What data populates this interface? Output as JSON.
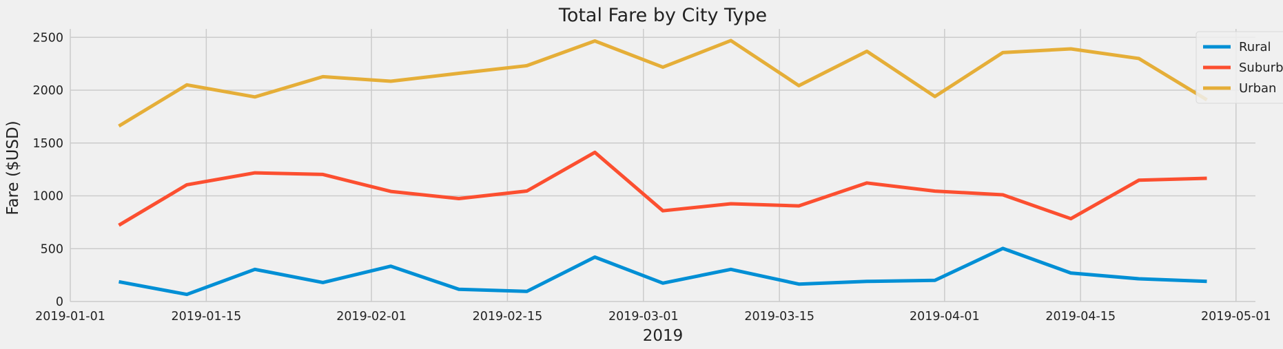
{
  "chart_data": {
    "type": "line",
    "title": "Total Fare by City Type",
    "xlabel": "2019",
    "ylabel": "Fare ($USD)",
    "xlim": [
      "2019-01-01",
      "2019-05-03"
    ],
    "ylim": [
      0,
      2580
    ],
    "x_ticks": [
      "2019-01-01",
      "2019-01-15",
      "2019-02-01",
      "2019-02-15",
      "2019-03-01",
      "2019-03-15",
      "2019-04-01",
      "2019-04-15",
      "2019-05-01"
    ],
    "y_ticks": [
      0,
      500,
      1000,
      1500,
      2000,
      2500
    ],
    "grid": true,
    "legend_position": "top-right",
    "x": [
      "2019-01-06",
      "2019-01-13",
      "2019-01-20",
      "2019-01-27",
      "2019-02-03",
      "2019-02-10",
      "2019-02-17",
      "2019-02-24",
      "2019-03-03",
      "2019-03-10",
      "2019-03-17",
      "2019-03-24",
      "2019-03-31",
      "2019-04-07",
      "2019-04-14",
      "2019-04-21",
      "2019-04-28"
    ],
    "series": [
      {
        "name": "Rural",
        "color": "#008fd5",
        "values": [
          187,
          67,
          304,
          180,
          334,
          115,
          96,
          420,
          174,
          304,
          165,
          190,
          200,
          502,
          270,
          215,
          190
        ]
      },
      {
        "name": "Suburban",
        "color": "#fc4f30",
        "values": [
          722,
          1105,
          1218,
          1203,
          1042,
          974,
          1046,
          1412,
          859,
          925,
          905,
          1122,
          1045,
          1010,
          784,
          1148,
          1166
        ]
      },
      {
        "name": "Urban",
        "color": "#e5ae38",
        "values": [
          1661,
          2050,
          1936,
          2128,
          2085,
          2160,
          2232,
          2466,
          2218,
          2470,
          2043,
          2368,
          1940,
          2356,
          2391,
          2300,
          1909
        ]
      }
    ]
  }
}
